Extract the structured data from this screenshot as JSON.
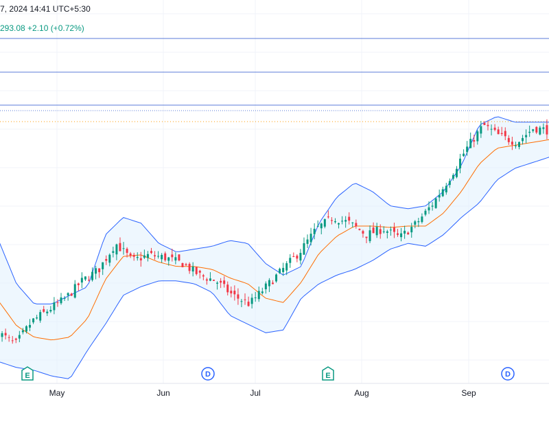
{
  "header": {
    "datetime": "7, 2024 14:41 UTC+5:30",
    "quote": "293.08  +2.10 (+0.72%)"
  },
  "colors": {
    "up": "#089981",
    "down": "#f23645",
    "band_line": "#2962ff",
    "band_fill": "#e3f2fd",
    "basis": "#ff6d00",
    "grid": "#f0f3fa",
    "hline": "#5b7bd8",
    "last_price": "#ff9800",
    "quote_text": "#089981"
  },
  "events": [
    {
      "type": "earnings",
      "label": "E",
      "date": "Apr 26"
    },
    {
      "type": "dividend",
      "label": "D",
      "date": "Jun 19"
    },
    {
      "type": "earnings",
      "label": "E",
      "date": "Jul 25"
    },
    {
      "type": "dividend",
      "label": "D",
      "date": "Sep 19"
    }
  ],
  "chart_data": {
    "type": "candlestick",
    "x_tick_labels": [
      "May",
      "Jun",
      "Jul",
      "Aug",
      "Sep"
    ],
    "indicators": [
      "Bollinger Bands (upper, basis, lower)"
    ],
    "horizontal_lines": [
      "level-1",
      "level-2",
      "level-3"
    ],
    "last_price_line": true,
    "series": [
      {
        "name": "price_close_trend",
        "values": [
          258,
          254,
          262,
          266,
          270,
          276,
          280,
          289,
          283,
          285,
          284,
          282,
          278,
          276,
          271,
          268,
          274,
          280,
          286,
          294,
          298,
          296,
          292,
          294,
          291,
          296,
          303,
          312,
          322,
          330,
          326,
          324,
          329,
          328
        ]
      },
      {
        "name": "bb_upper_trend",
        "values": [
          290,
          275,
          268,
          268,
          271,
          274,
          292,
          298,
          296,
          289,
          286,
          287,
          288,
          290,
          289,
          282,
          278,
          281,
          296,
          305,
          310,
          307,
          302,
          301,
          302,
          307,
          316,
          330,
          333,
          331,
          331,
          331
        ]
      },
      {
        "name": "bb_lower_trend",
        "values": [
          248,
          246,
          245,
          243,
          242,
          252,
          261,
          271,
          274,
          276,
          276,
          275,
          272,
          264,
          261,
          258,
          259,
          270,
          275,
          278,
          280,
          283,
          287,
          289,
          288,
          292,
          298,
          303,
          311,
          315,
          317,
          319
        ]
      }
    ]
  }
}
